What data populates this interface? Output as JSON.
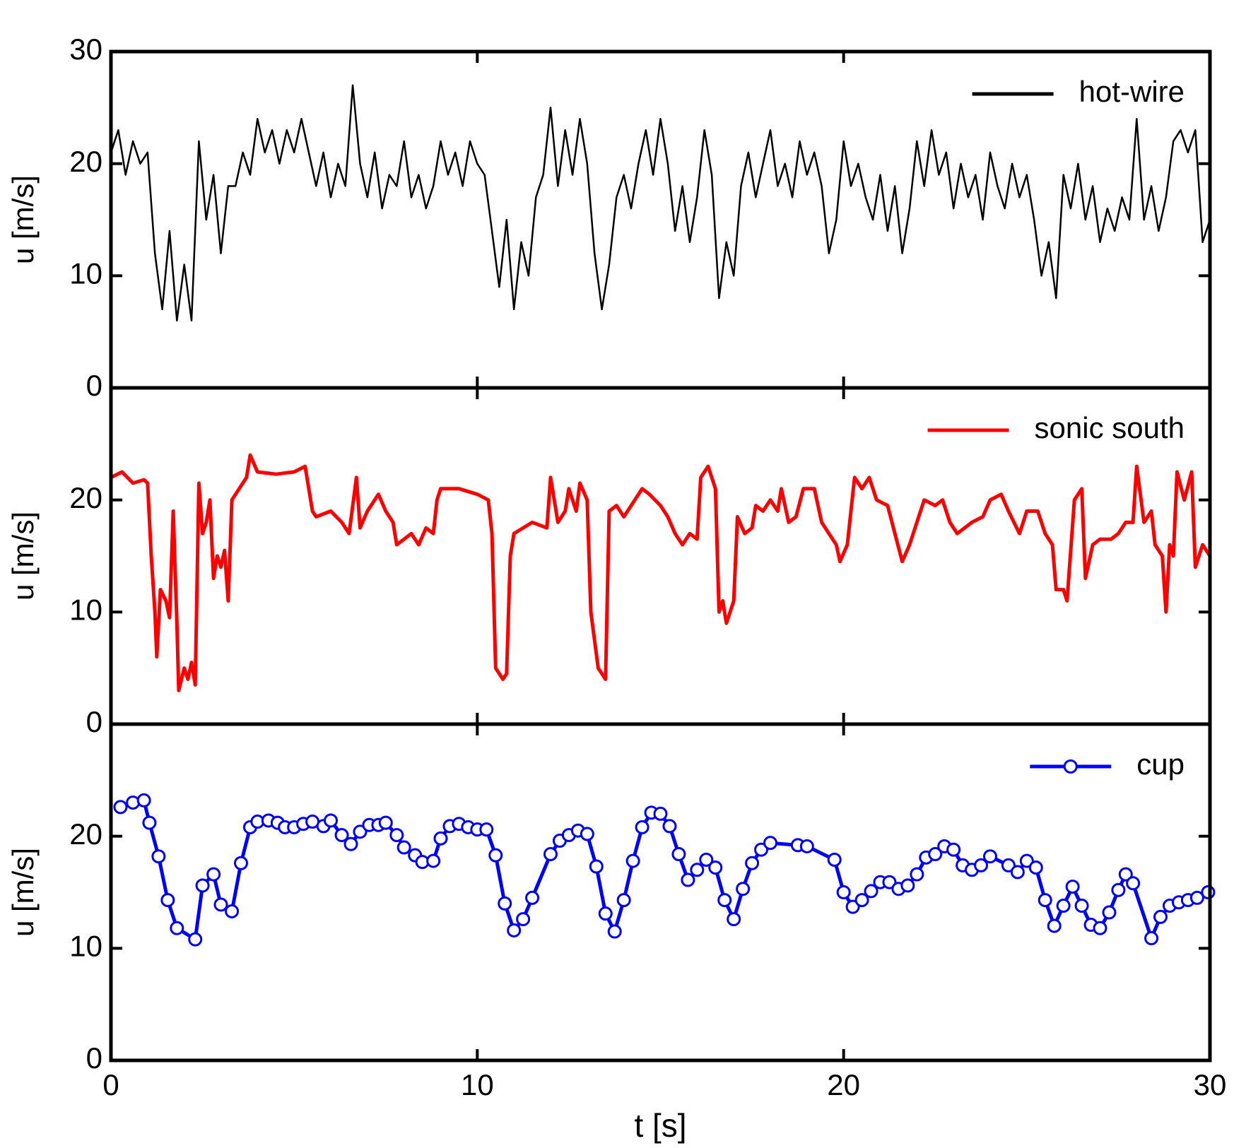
{
  "chart_data": [
    {
      "type": "line",
      "ylabel": "u [m/s]",
      "ylim": [
        0,
        30
      ],
      "yticks": [
        0,
        10,
        20,
        30
      ],
      "xlim": [
        0,
        30
      ],
      "legend": "upper right",
      "series": [
        {
          "name": "hot-wire",
          "color": "#000000",
          "marker": null,
          "x": [
            0,
            0.2,
            0.4,
            0.6,
            0.8,
            1,
            1.2,
            1.4,
            1.6,
            1.8,
            2,
            2.2,
            2.4,
            2.6,
            2.8,
            3,
            3.2,
            3.4,
            3.6,
            3.8,
            4,
            4.2,
            4.4,
            4.6,
            4.8,
            5,
            5.2,
            5.4,
            5.6,
            5.8,
            6,
            6.2,
            6.4,
            6.6,
            6.8,
            7,
            7.2,
            7.4,
            7.6,
            7.8,
            8,
            8.2,
            8.4,
            8.6,
            8.8,
            9,
            9.2,
            9.4,
            9.6,
            9.8,
            10,
            10.2,
            10.4,
            10.6,
            10.8,
            11,
            11.2,
            11.4,
            11.6,
            11.8,
            12,
            12.2,
            12.4,
            12.6,
            12.8,
            13,
            13.2,
            13.4,
            13.6,
            13.8,
            14,
            14.2,
            14.4,
            14.6,
            14.8,
            15,
            15.2,
            15.4,
            15.6,
            15.8,
            16,
            16.2,
            16.4,
            16.6,
            16.8,
            17,
            17.2,
            17.4,
            17.6,
            17.8,
            18,
            18.2,
            18.4,
            18.6,
            18.8,
            19,
            19.2,
            19.4,
            19.6,
            19.8,
            20,
            20.2,
            20.4,
            20.6,
            20.8,
            21,
            21.2,
            21.4,
            21.6,
            21.8,
            22,
            22.2,
            22.4,
            22.6,
            22.8,
            23,
            23.2,
            23.4,
            23.6,
            23.8,
            24,
            24.2,
            24.4,
            24.6,
            24.8,
            25,
            25.2,
            25.4,
            25.6,
            25.8,
            26,
            26.2,
            26.4,
            26.6,
            26.8,
            27,
            27.2,
            27.4,
            27.6,
            27.8,
            28,
            28.2,
            28.4,
            28.6,
            28.8,
            29,
            29.2,
            29.4,
            29.6,
            29.8,
            30
          ],
          "values": [
            21,
            23,
            19,
            22,
            20,
            21,
            12,
            7,
            14,
            6,
            11,
            6,
            22,
            15,
            19,
            12,
            18,
            18,
            21,
            19,
            24,
            21,
            23,
            20,
            23,
            21,
            24,
            21,
            18,
            21,
            17,
            20,
            18,
            27,
            20,
            17,
            21,
            16,
            19,
            18,
            22,
            17,
            19,
            16,
            18,
            22,
            19,
            21,
            18,
            22,
            20,
            19,
            14,
            9,
            15,
            7,
            13,
            10,
            17,
            19,
            25,
            18,
            23,
            19,
            24,
            20,
            12,
            7,
            11,
            17,
            19,
            16,
            20,
            23,
            19,
            24,
            20,
            14,
            18,
            13,
            17,
            23,
            19,
            8,
            13,
            10,
            18,
            21,
            17,
            20,
            23,
            18,
            20,
            17,
            22,
            19,
            21,
            18,
            12,
            15,
            22,
            18,
            20,
            17,
            15,
            19,
            14,
            18,
            12,
            16,
            22,
            18,
            23,
            19,
            21,
            16,
            20,
            17,
            19,
            15,
            21,
            18,
            16,
            20,
            17,
            19,
            15,
            10,
            13,
            8,
            19,
            16,
            20,
            15,
            18,
            13,
            16,
            14,
            17,
            15,
            24,
            15,
            18,
            14,
            17,
            22,
            23,
            21,
            23,
            13,
            15
          ]
        }
      ]
    },
    {
      "type": "line",
      "ylabel": "u [m/s]",
      "ylim": [
        0,
        30
      ],
      "yticks": [
        0,
        10,
        20
      ],
      "xlim": [
        0,
        30
      ],
      "legend": "upper right",
      "series": [
        {
          "name": "sonic south",
          "color": "#ff0000",
          "marker": null,
          "x": [
            0,
            0.3,
            0.6,
            0.9,
            1.0,
            1.1,
            1.2,
            1.25,
            1.35,
            1.5,
            1.6,
            1.7,
            1.8,
            1.85,
            2.0,
            2.1,
            2.2,
            2.3,
            2.4,
            2.5,
            2.6,
            2.7,
            2.8,
            2.9,
            3.0,
            3.1,
            3.2,
            3.3,
            3.5,
            3.7,
            3.8,
            4.0,
            4.5,
            5.0,
            5.3,
            5.5,
            5.6,
            6.0,
            6.3,
            6.5,
            6.7,
            6.8,
            7.0,
            7.3,
            7.5,
            7.7,
            7.8,
            8.0,
            8.2,
            8.4,
            8.6,
            8.8,
            8.9,
            9.0,
            9.5,
            10.0,
            10.3,
            10.4,
            10.5,
            10.7,
            10.8,
            10.9,
            11.0,
            11.5,
            11.9,
            12.0,
            12.2,
            12.4,
            12.5,
            12.7,
            12.8,
            13.0,
            13.1,
            13.3,
            13.5,
            13.6,
            13.8,
            14.0,
            14.3,
            14.5,
            14.7,
            15.0,
            15.2,
            15.4,
            15.6,
            15.8,
            16.0,
            16.1,
            16.3,
            16.5,
            16.6,
            16.7,
            16.8,
            17.0,
            17.1,
            17.3,
            17.5,
            17.6,
            17.8,
            18.0,
            18.2,
            18.3,
            18.5,
            18.7,
            18.9,
            19.2,
            19.4,
            19.6,
            19.8,
            19.9,
            20.1,
            20.2,
            20.3,
            20.5,
            20.7,
            20.9,
            21.2,
            21.4,
            21.6,
            21.8,
            22.0,
            22.2,
            22.5,
            22.7,
            22.9,
            23.1,
            23.5,
            23.8,
            24.0,
            24.3,
            24.5,
            24.8,
            25.0,
            25.3,
            25.5,
            25.7,
            25.8,
            26.0,
            26.1,
            26.3,
            26.5,
            26.6,
            26.8,
            27.0,
            27.3,
            27.5,
            27.7,
            27.9,
            28.0,
            28.2,
            28.4,
            28.5,
            28.7,
            28.8,
            28.9,
            29.0,
            29.1,
            29.3,
            29.5,
            29.6,
            29.8,
            30.0
          ],
          "values": [
            22,
            22.5,
            21.5,
            21.8,
            21.5,
            15,
            10,
            6,
            12,
            11,
            9.5,
            19,
            9,
            3,
            5,
            4,
            5.5,
            3.5,
            21.5,
            17,
            18,
            20,
            13,
            15,
            14,
            15.5,
            11,
            20,
            21,
            22,
            24,
            22.5,
            22.3,
            22.5,
            23,
            19,
            18.5,
            19,
            18,
            17,
            22,
            17.5,
            19,
            20.5,
            19,
            18,
            16,
            16.5,
            17,
            16,
            17.5,
            17,
            20,
            21,
            21,
            20.5,
            20,
            17,
            5,
            4,
            4.5,
            15,
            17,
            18,
            17.5,
            22,
            18,
            19,
            21,
            19,
            21.5,
            20,
            10,
            5,
            4,
            19,
            19.5,
            18.5,
            20,
            21,
            20.5,
            19.5,
            18.5,
            17,
            16,
            17,
            16.5,
            22,
            23,
            21,
            10,
            11,
            9,
            11,
            18.5,
            17,
            17.5,
            19.5,
            19,
            20,
            19,
            21,
            18,
            18.5,
            21,
            21,
            18,
            17,
            16,
            14.5,
            16,
            19,
            22,
            21,
            22,
            20,
            19.5,
            17,
            14.5,
            16,
            18,
            20,
            19.5,
            20,
            18,
            17,
            18,
            18.5,
            20,
            20.5,
            19,
            17,
            19,
            19,
            17,
            16,
            12,
            12,
            11,
            20,
            21,
            13,
            16,
            16.5,
            16.5,
            17,
            18,
            18,
            23,
            18,
            19,
            16,
            15,
            10,
            16,
            15,
            22.5,
            20,
            22.5,
            14,
            16,
            15
          ]
        }
      ]
    },
    {
      "type": "line",
      "ylabel": "u [m/s]",
      "xlabel": "t [s]",
      "ylim": [
        0,
        30
      ],
      "yticks": [
        0,
        10,
        20
      ],
      "xlim": [
        0,
        30
      ],
      "xticks": [
        0,
        10,
        20,
        30
      ],
      "legend": "upper right",
      "series": [
        {
          "name": "cup",
          "color": "#0000ff",
          "marker": "circle",
          "x": [
            0.26,
            0.6,
            0.9,
            1.05,
            1.3,
            1.55,
            1.8,
            2.3,
            2.5,
            2.8,
            3.0,
            3.3,
            3.55,
            3.8,
            4.0,
            4.3,
            4.55,
            4.75,
            5.0,
            5.25,
            5.5,
            5.8,
            6.0,
            6.3,
            6.55,
            6.8,
            7.05,
            7.3,
            7.5,
            7.8,
            8.0,
            8.3,
            8.5,
            8.8,
            9.0,
            9.25,
            9.5,
            9.75,
            10.0,
            10.25,
            10.5,
            10.75,
            11.0,
            11.25,
            11.5,
            12.0,
            12.25,
            12.5,
            12.75,
            13.0,
            13.25,
            13.5,
            13.75,
            14.0,
            14.25,
            14.5,
            14.75,
            15.0,
            15.25,
            15.5,
            15.75,
            16.0,
            16.25,
            16.5,
            16.75,
            17.0,
            17.25,
            17.5,
            17.75,
            18.0,
            18.75,
            19.0,
            19.75,
            20.0,
            20.25,
            20.5,
            20.75,
            21.0,
            21.25,
            21.5,
            21.75,
            22.0,
            22.25,
            22.5,
            22.75,
            23.0,
            23.25,
            23.5,
            23.75,
            24.0,
            24.5,
            24.75,
            25.0,
            25.25,
            25.5,
            25.75,
            26.0,
            26.25,
            26.5,
            26.75,
            27.0,
            27.25,
            27.5,
            27.7,
            27.9,
            28.4,
            28.65,
            28.9,
            29.15,
            29.4,
            29.65,
            29.95
          ],
          "values": [
            22.6,
            23.0,
            23.2,
            21.2,
            18.2,
            14.3,
            11.8,
            10.8,
            15.6,
            16.6,
            13.9,
            13.3,
            17.6,
            20.8,
            21.3,
            21.4,
            21.2,
            20.8,
            20.8,
            21.1,
            21.3,
            20.9,
            21.4,
            20.1,
            19.3,
            20.4,
            21.0,
            21.0,
            21.2,
            20.1,
            19.0,
            18.3,
            17.7,
            17.8,
            19.8,
            20.9,
            21.1,
            20.8,
            20.6,
            20.6,
            18.3,
            14.0,
            11.6,
            12.6,
            14.5,
            18.4,
            19.6,
            20.1,
            20.5,
            20.2,
            17.3,
            13.1,
            11.5,
            14.3,
            17.8,
            20.8,
            22.1,
            22.0,
            20.9,
            18.4,
            16.1,
            17.0,
            17.9,
            17.2,
            14.3,
            12.6,
            15.3,
            17.6,
            18.8,
            19.4,
            19.2,
            19.1,
            17.9,
            15.0,
            13.7,
            14.3,
            15.1,
            15.9,
            15.9,
            15.3,
            15.6,
            16.6,
            18.1,
            18.4,
            19.1,
            18.8,
            17.4,
            17.0,
            17.4,
            18.2,
            17.4,
            16.8,
            17.8,
            17.2,
            14.3,
            12.0,
            13.8,
            15.5,
            13.8,
            12.1,
            11.8,
            13.2,
            15.2,
            16.6,
            15.8,
            10.9,
            12.8,
            13.8,
            14.1,
            14.3,
            14.5,
            15.0
          ]
        }
      ]
    }
  ]
}
